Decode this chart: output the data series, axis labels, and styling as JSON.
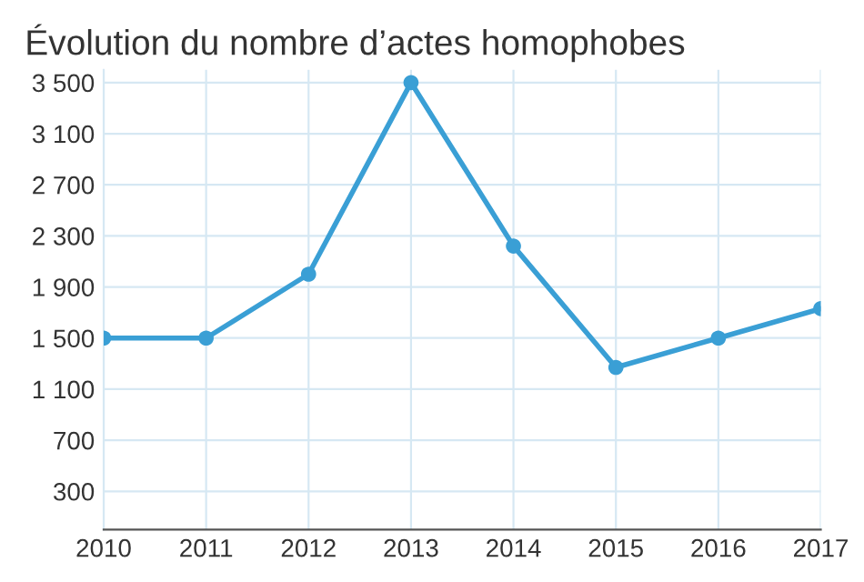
{
  "chart_data": {
    "type": "line",
    "title": "Évolution du nombre d’actes homophobes",
    "x": [
      2010,
      2011,
      2012,
      2013,
      2014,
      2015,
      2016,
      2017
    ],
    "series": [
      {
        "color": "#3a9fd5",
        "values": [
          1500,
          1500,
          2000,
          3500,
          2220,
          1270,
          1500,
          1730
        ]
      }
    ],
    "xlim": [
      2010,
      2017
    ],
    "xticks": [
      2010,
      2011,
      2012,
      2013,
      2014,
      2015,
      2016,
      2017
    ],
    "ylim": [
      0,
      3600
    ],
    "yticks": [
      300,
      700,
      {
        "value": 1100,
        "label": "1 100"
      },
      {
        "value": 1500,
        "label": "1 500"
      },
      {
        "value": 1900,
        "label": "1 900"
      },
      {
        "value": 2300,
        "label": "2 300"
      },
      {
        "value": 2700,
        "label": "2 700"
      },
      {
        "value": 3100,
        "label": "3 100"
      },
      {
        "value": 3500,
        "label": "3 500"
      }
    ],
    "grid": true,
    "marker": "circle",
    "line_style": "solid"
  }
}
